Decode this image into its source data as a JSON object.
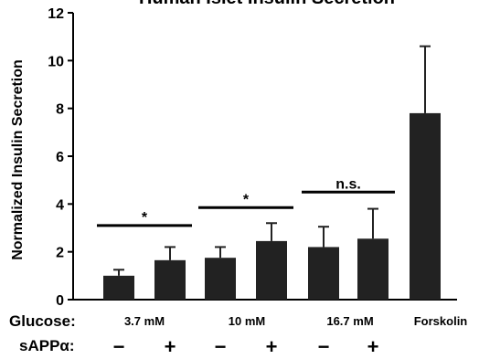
{
  "chart_data": {
    "type": "bar",
    "title": "Human Islet Insulin Secretion",
    "ylabel": "Normalized Insulin Secretion",
    "xlabel": "",
    "ylim": [
      0,
      12
    ],
    "yticks": [
      "0",
      "2",
      "4",
      "6",
      "8",
      "10",
      "12"
    ],
    "grid": false,
    "bar_color": "#222222",
    "row_labels": {
      "glucose": "Glucose:",
      "sapp": "sAPPα:"
    },
    "groups": [
      {
        "label": "3.7 mM",
        "bars": [
          0,
          1
        ]
      },
      {
        "label": "10 mM",
        "bars": [
          2,
          3
        ]
      },
      {
        "label": "16.7 mM",
        "bars": [
          4,
          5
        ]
      },
      {
        "label": "Forskolin",
        "bars": [
          6
        ]
      }
    ],
    "bars": [
      {
        "value": 1.0,
        "error": 0.25,
        "sign": "−"
      },
      {
        "value": 1.65,
        "error": 0.55,
        "sign": "+"
      },
      {
        "value": 1.75,
        "error": 0.45,
        "sign": "−"
      },
      {
        "value": 2.45,
        "error": 0.75,
        "sign": "+"
      },
      {
        "value": 2.2,
        "error": 0.85,
        "sign": "−"
      },
      {
        "value": 2.55,
        "error": 1.25,
        "sign": "+"
      },
      {
        "value": 7.8,
        "error": 2.8,
        "sign": ""
      }
    ],
    "annotations": [
      {
        "text": "*",
        "from": 0,
        "to": 1,
        "y": 3.1
      },
      {
        "text": "*",
        "from": 2,
        "to": 3,
        "y": 3.85
      },
      {
        "text": "n.s.",
        "from": 4,
        "to": 5,
        "y": 4.5
      }
    ]
  }
}
